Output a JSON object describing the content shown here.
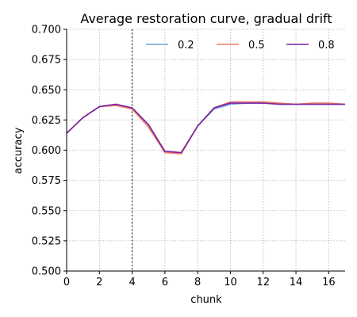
{
  "chart_data": {
    "type": "line",
    "title": "Average restoration curve, gradual drift",
    "xlabel": "chunk",
    "ylabel": "accuracy",
    "xlim": [
      0,
      17
    ],
    "ylim": [
      0.5,
      0.7
    ],
    "x_ticks": [
      0,
      2,
      4,
      6,
      8,
      10,
      12,
      14,
      16
    ],
    "x_tick_labels": [
      "0",
      "2",
      "4",
      "6",
      "8",
      "10",
      "12",
      "14",
      "16"
    ],
    "y_ticks": [
      0.5,
      0.525,
      0.55,
      0.575,
      0.6,
      0.625,
      0.65,
      0.675,
      0.7
    ],
    "y_tick_labels": [
      "0.500",
      "0.525",
      "0.550",
      "0.575",
      "0.600",
      "0.625",
      "0.650",
      "0.675",
      "0.700"
    ],
    "grid": true,
    "grid_style": "dotted",
    "legend_position": "top-right",
    "vline": {
      "x": 4,
      "style": "dotted",
      "color": "#555555"
    },
    "x": [
      0,
      1,
      2,
      3,
      4,
      5,
      6,
      7,
      8,
      9,
      10,
      11,
      12,
      13,
      14,
      15,
      16,
      17
    ],
    "series": [
      {
        "name": "0.2",
        "color": "#6fa0e0",
        "values": [
          0.614,
          0.627,
          0.636,
          0.638,
          0.635,
          0.621,
          0.599,
          0.598,
          0.62,
          0.634,
          0.638,
          0.639,
          0.639,
          0.638,
          0.638,
          0.638,
          0.638,
          0.638
        ]
      },
      {
        "name": "0.5",
        "color": "#f07f62",
        "values": [
          0.614,
          0.627,
          0.636,
          0.637,
          0.634,
          0.619,
          0.598,
          0.597,
          0.62,
          0.635,
          0.64,
          0.64,
          0.64,
          0.639,
          0.638,
          0.639,
          0.639,
          0.638
        ]
      },
      {
        "name": "0.8",
        "color": "#7b1fa2",
        "values": [
          0.614,
          0.627,
          0.636,
          0.638,
          0.635,
          0.621,
          0.599,
          0.598,
          0.62,
          0.635,
          0.639,
          0.639,
          0.639,
          0.638,
          0.638,
          0.638,
          0.638,
          0.638
        ]
      }
    ]
  }
}
